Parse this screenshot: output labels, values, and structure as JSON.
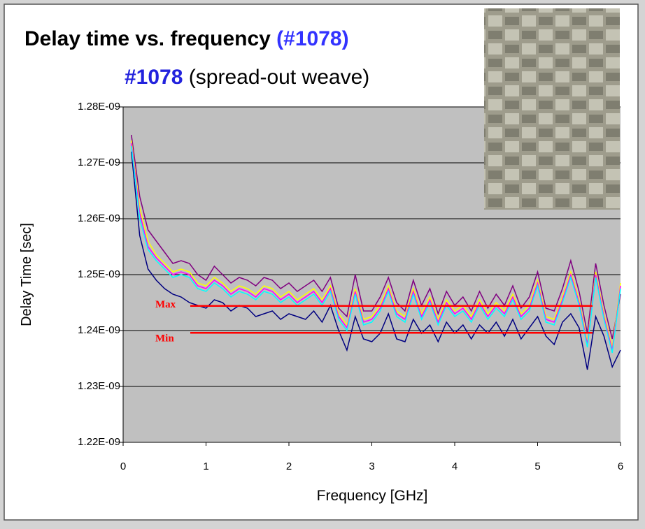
{
  "chart_data": {
    "type": "line",
    "title": "Delay time vs. frequency",
    "title_highlight": "(#1078)",
    "subtitle_highlight": "#1078",
    "subtitle": "(spread-out weave)",
    "x_label": "Frequency [GHz]",
    "y_label": "Delay Time [sec]",
    "xlim": [
      0,
      6
    ],
    "xticks": [
      0,
      1,
      2,
      3,
      4,
      5,
      6
    ],
    "ylim": [
      1.22e-09,
      1.28e-09
    ],
    "yticks": [
      {
        "value": 1.22e-09,
        "label": "1.22E-09"
      },
      {
        "value": 1.23e-09,
        "label": "1.23E-09"
      },
      {
        "value": 1.24e-09,
        "label": "1.24E-09"
      },
      {
        "value": 1.25e-09,
        "label": "1.25E-09"
      },
      {
        "value": 1.26e-09,
        "label": "1.26E-09"
      },
      {
        "value": 1.27e-09,
        "label": "1.27E-09"
      },
      {
        "value": 1.28e-09,
        "label": "1.28E-09"
      }
    ],
    "grid": true,
    "annotations": [
      {
        "text": "Max",
        "value": 1.2444e-09,
        "color": "#ff0000"
      },
      {
        "text": "Min",
        "value": 1.2396e-09,
        "color": "#ff0000"
      }
    ],
    "x": [
      0.1,
      0.2,
      0.3,
      0.4,
      0.5,
      0.6,
      0.7,
      0.8,
      0.9,
      1.0,
      1.1,
      1.2,
      1.3,
      1.4,
      1.5,
      1.6,
      1.7,
      1.8,
      1.9,
      2.0,
      2.1,
      2.2,
      2.3,
      2.4,
      2.5,
      2.6,
      2.7,
      2.8,
      2.9,
      3.0,
      3.1,
      3.2,
      3.3,
      3.4,
      3.5,
      3.6,
      3.7,
      3.8,
      3.9,
      4.0,
      4.1,
      4.2,
      4.3,
      4.4,
      4.5,
      4.6,
      4.7,
      4.8,
      4.9,
      5.0,
      5.1,
      5.2,
      5.3,
      5.4,
      5.5,
      5.6,
      5.7,
      5.8,
      5.9,
      6.0
    ],
    "series": [
      {
        "color": "#000080",
        "values": [
          1.272e-09,
          1.257e-09,
          1.251e-09,
          1.249e-09,
          1.2475e-09,
          1.2465e-09,
          1.246e-09,
          1.245e-09,
          1.2445e-09,
          1.244e-09,
          1.2455e-09,
          1.245e-09,
          1.2435e-09,
          1.2445e-09,
          1.244e-09,
          1.2425e-09,
          1.243e-09,
          1.2435e-09,
          1.242e-09,
          1.243e-09,
          1.2425e-09,
          1.242e-09,
          1.2435e-09,
          1.2415e-09,
          1.2445e-09,
          1.24e-09,
          1.2365e-09,
          1.2425e-09,
          1.2385e-09,
          1.238e-09,
          1.2395e-09,
          1.243e-09,
          1.2385e-09,
          1.238e-09,
          1.242e-09,
          1.2395e-09,
          1.241e-09,
          1.238e-09,
          1.2415e-09,
          1.2395e-09,
          1.241e-09,
          1.2385e-09,
          1.241e-09,
          1.2395e-09,
          1.2415e-09,
          1.239e-09,
          1.242e-09,
          1.2385e-09,
          1.2405e-09,
          1.2425e-09,
          1.239e-09,
          1.2375e-09,
          1.2415e-09,
          1.243e-09,
          1.2405e-09,
          1.233e-09,
          1.2425e-09,
          1.239e-09,
          1.2335e-09,
          1.2365e-09
        ]
      },
      {
        "color": "#800080",
        "values": [
          1.275e-09,
          1.264e-09,
          1.258e-09,
          1.256e-09,
          1.254e-09,
          1.252e-09,
          1.2525e-09,
          1.252e-09,
          1.25e-09,
          1.249e-09,
          1.2515e-09,
          1.25e-09,
          1.2485e-09,
          1.2495e-09,
          1.249e-09,
          1.248e-09,
          1.2495e-09,
          1.249e-09,
          1.2475e-09,
          1.2485e-09,
          1.247e-09,
          1.248e-09,
          1.249e-09,
          1.247e-09,
          1.2495e-09,
          1.244e-09,
          1.2425e-09,
          1.25e-09,
          1.2435e-09,
          1.2435e-09,
          1.246e-09,
          1.2495e-09,
          1.245e-09,
          1.2435e-09,
          1.249e-09,
          1.2445e-09,
          1.2475e-09,
          1.243e-09,
          1.247e-09,
          1.2445e-09,
          1.246e-09,
          1.2435e-09,
          1.247e-09,
          1.244e-09,
          1.2465e-09,
          1.2445e-09,
          1.248e-09,
          1.244e-09,
          1.246e-09,
          1.2505e-09,
          1.244e-09,
          1.2435e-09,
          1.2475e-09,
          1.2525e-09,
          1.247e-09,
          1.2395e-09,
          1.252e-09,
          1.2445e-09,
          1.2385e-09,
          1.2465e-09
        ]
      },
      {
        "color": "#ffff00",
        "values": [
          1.274e-09,
          1.262e-09,
          1.256e-09,
          1.2535e-09,
          1.252e-09,
          1.2505e-09,
          1.251e-09,
          1.2505e-09,
          1.2485e-09,
          1.248e-09,
          1.2495e-09,
          1.2485e-09,
          1.247e-09,
          1.248e-09,
          1.2475e-09,
          1.2465e-09,
          1.248e-09,
          1.2475e-09,
          1.246e-09,
          1.247e-09,
          1.2455e-09,
          1.2465e-09,
          1.2475e-09,
          1.2455e-09,
          1.248e-09,
          1.243e-09,
          1.241e-09,
          1.2475e-09,
          1.242e-09,
          1.2425e-09,
          1.2445e-09,
          1.248e-09,
          1.2435e-09,
          1.2425e-09,
          1.2475e-09,
          1.243e-09,
          1.246e-09,
          1.242e-09,
          1.2455e-09,
          1.2435e-09,
          1.2445e-09,
          1.2425e-09,
          1.2455e-09,
          1.243e-09,
          1.245e-09,
          1.2435e-09,
          1.2465e-09,
          1.243e-09,
          1.2445e-09,
          1.249e-09,
          1.2425e-09,
          1.242e-09,
          1.246e-09,
          1.2505e-09,
          1.2455e-09,
          1.238e-09,
          1.2505e-09,
          1.243e-09,
          1.237e-09,
          1.2485e-09
        ]
      },
      {
        "color": "#ff00ff",
        "values": [
          1.2735e-09,
          1.261e-09,
          1.255e-09,
          1.253e-09,
          1.2515e-09,
          1.25e-09,
          1.2505e-09,
          1.25e-09,
          1.248e-09,
          1.2475e-09,
          1.249e-09,
          1.248e-09,
          1.2465e-09,
          1.2475e-09,
          1.247e-09,
          1.246e-09,
          1.2475e-09,
          1.247e-09,
          1.2455e-09,
          1.2465e-09,
          1.245e-09,
          1.246e-09,
          1.247e-09,
          1.245e-09,
          1.2475e-09,
          1.2425e-09,
          1.2405e-09,
          1.247e-09,
          1.2415e-09,
          1.242e-09,
          1.244e-09,
          1.2475e-09,
          1.243e-09,
          1.242e-09,
          1.247e-09,
          1.2425e-09,
          1.2455e-09,
          1.2415e-09,
          1.245e-09,
          1.243e-09,
          1.244e-09,
          1.242e-09,
          1.245e-09,
          1.2425e-09,
          1.2445e-09,
          1.243e-09,
          1.246e-09,
          1.2425e-09,
          1.244e-09,
          1.2485e-09,
          1.242e-09,
          1.2415e-09,
          1.2455e-09,
          1.25e-09,
          1.245e-09,
          1.2375e-09,
          1.25e-09,
          1.2425e-09,
          1.2365e-09,
          1.248e-09
        ]
      },
      {
        "color": "#00ffff",
        "values": [
          1.273e-09,
          1.26e-09,
          1.2545e-09,
          1.2525e-09,
          1.251e-09,
          1.2495e-09,
          1.25e-09,
          1.2495e-09,
          1.2475e-09,
          1.247e-09,
          1.2485e-09,
          1.2475e-09,
          1.246e-09,
          1.247e-09,
          1.2465e-09,
          1.2455e-09,
          1.247e-09,
          1.2465e-09,
          1.245e-09,
          1.246e-09,
          1.2445e-09,
          1.2455e-09,
          1.2465e-09,
          1.2445e-09,
          1.247e-09,
          1.242e-09,
          1.24e-09,
          1.2465e-09,
          1.241e-09,
          1.2415e-09,
          1.2435e-09,
          1.247e-09,
          1.2425e-09,
          1.2415e-09,
          1.2465e-09,
          1.242e-09,
          1.245e-09,
          1.241e-09,
          1.2445e-09,
          1.2425e-09,
          1.2435e-09,
          1.2415e-09,
          1.2445e-09,
          1.242e-09,
          1.244e-09,
          1.2425e-09,
          1.2455e-09,
          1.242e-09,
          1.2435e-09,
          1.248e-09,
          1.2415e-09,
          1.241e-09,
          1.245e-09,
          1.2495e-09,
          1.2445e-09,
          1.237e-09,
          1.2495e-09,
          1.242e-09,
          1.236e-09,
          1.2475e-09
        ]
      }
    ]
  }
}
